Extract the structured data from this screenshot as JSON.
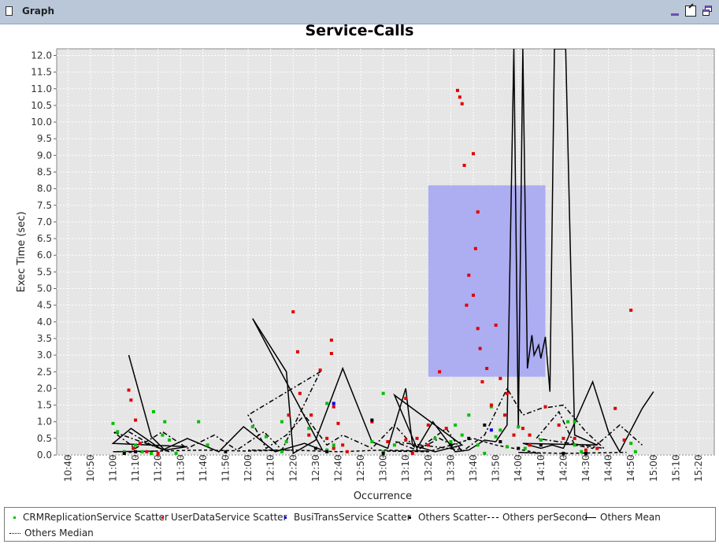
{
  "window": {
    "title": "Graph"
  },
  "chart_data": {
    "type": "scatter",
    "title": "Service-Calls",
    "xlabel": "Occurrence",
    "ylabel": "Exec Time (sec)",
    "ylim": [
      0,
      12.2
    ],
    "yticks": [
      "0.0",
      "0.5",
      "1.0",
      "1.5",
      "2.0",
      "2.5",
      "3.0",
      "3.5",
      "4.0",
      "4.5",
      "5.0",
      "5.5",
      "6.0",
      "6.5",
      "7.0",
      "7.5",
      "8.0",
      "8.5",
      "9.0",
      "9.5",
      "10.0",
      "10.5",
      "11.0",
      "11.5",
      "12.0"
    ],
    "xticks": [
      "10:40",
      "10:50",
      "11:00",
      "11:10",
      "11:20",
      "11:30",
      "11:40",
      "11:50",
      "12:00",
      "12:10",
      "12:20",
      "12:30",
      "12:40",
      "12:50",
      "13:00",
      "13:10",
      "13:20",
      "13:30",
      "13:40",
      "13:50",
      "14:00",
      "14:10",
      "14:20",
      "14:30",
      "14:40",
      "14:50",
      "15:00",
      "15:10",
      "15:20"
    ],
    "xlim_minutes": [
      635,
      927
    ],
    "grid": true,
    "legend_position": "bottom",
    "selection_box": {
      "x": [
        12.8,
        14.12
      ],
      "y": [
        2.35,
        8.1
      ],
      "color": "#aaaaf2"
    },
    "series": [
      {
        "name": "CRMReplicationService Scatter",
        "kind": "scatter",
        "color": "#00c000",
        "points": [
          [
            10.7,
            0.3
          ],
          [
            10.73,
            0.1
          ],
          [
            10.77,
            0.05
          ],
          [
            10.83,
            1.0
          ],
          [
            10.85,
            0.45
          ],
          [
            10.88,
            0.05
          ],
          [
            11.0,
            0.95
          ],
          [
            11.02,
            0.7
          ],
          [
            11.05,
            0.1
          ],
          [
            11.18,
            1.3
          ],
          [
            11.22,
            0.6
          ],
          [
            11.38,
            1.0
          ],
          [
            11.42,
            0.3
          ],
          [
            11.68,
            0.55
          ],
          [
            11.75,
            0.1
          ],
          [
            11.95,
            1.55
          ],
          [
            11.98,
            0.3
          ],
          [
            12.02,
            0.85
          ],
          [
            12.15,
            1.0
          ],
          [
            12.17,
            0.4
          ],
          [
            12.27,
            0.8
          ],
          [
            12.35,
            0.15
          ],
          [
            12.55,
            0.4
          ],
          [
            12.6,
            0.1
          ],
          [
            12.83,
            0.5
          ],
          [
            13.0,
            1.85
          ],
          [
            13.05,
            0.3
          ],
          [
            13.3,
            0.4
          ],
          [
            13.32,
            0.9
          ],
          [
            13.35,
            0.6
          ],
          [
            13.38,
            1.2
          ],
          [
            13.42,
            0.3
          ],
          [
            13.45,
            0.05
          ],
          [
            13.48,
            1.45
          ],
          [
            13.5,
            0.55
          ],
          [
            13.52,
            0.75
          ],
          [
            13.55,
            0.25
          ],
          [
            13.82,
            1.0
          ],
          [
            13.85,
            0.3
          ],
          [
            14.0,
            0.85
          ],
          [
            14.03,
            0.2
          ],
          [
            14.1,
            0.45
          ],
          [
            14.25,
            1.0
          ],
          [
            14.28,
            0.1
          ],
          [
            14.5,
            0.35
          ],
          [
            14.52,
            0.1
          ]
        ]
      },
      {
        "name": "UserDataService Scatter",
        "kind": "scatter",
        "color": "#e00000",
        "points": [
          [
            10.67,
            1.95
          ],
          [
            10.68,
            1.65
          ],
          [
            10.7,
            1.05
          ],
          [
            10.69,
            0.2
          ],
          [
            10.72,
            0.35
          ],
          [
            10.75,
            0.1
          ],
          [
            10.8,
            0.05
          ],
          [
            11.97,
            3.05
          ],
          [
            11.92,
            2.55
          ],
          [
            11.88,
            1.2
          ],
          [
            11.95,
            0.5
          ],
          [
            11.98,
            0.2
          ],
          [
            12.2,
            4.3
          ],
          [
            12.22,
            3.1
          ],
          [
            12.23,
            1.85
          ],
          [
            12.18,
            1.2
          ],
          [
            12.27,
            0.6
          ],
          [
            12.37,
            3.45
          ],
          [
            12.38,
            1.45
          ],
          [
            12.4,
            0.95
          ],
          [
            12.42,
            0.3
          ],
          [
            12.44,
            0.1
          ],
          [
            12.55,
            1.0
          ],
          [
            12.62,
            0.4
          ],
          [
            12.7,
            1.7
          ],
          [
            12.75,
            0.5
          ],
          [
            12.8,
            0.3
          ],
          [
            13.1,
            0.45
          ],
          [
            13.13,
            0.05
          ],
          [
            13.2,
            0.9
          ],
          [
            13.25,
            2.5
          ],
          [
            13.28,
            0.8
          ],
          [
            13.33,
            10.95
          ],
          [
            13.34,
            10.75
          ],
          [
            13.35,
            10.55
          ],
          [
            13.36,
            8.7
          ],
          [
            13.38,
            5.4
          ],
          [
            13.37,
            4.5
          ],
          [
            13.4,
            9.05
          ],
          [
            13.42,
            7.3
          ],
          [
            13.41,
            6.2
          ],
          [
            13.4,
            4.8
          ],
          [
            13.42,
            3.8
          ],
          [
            13.43,
            3.2
          ],
          [
            13.44,
            2.2
          ],
          [
            13.46,
            2.6
          ],
          [
            13.48,
            1.5
          ],
          [
            13.5,
            3.9
          ],
          [
            13.52,
            2.3
          ],
          [
            13.54,
            1.2
          ],
          [
            13.55,
            1.85
          ],
          [
            13.58,
            0.6
          ],
          [
            13.62,
            0.8
          ],
          [
            13.65,
            0.3
          ],
          [
            13.8,
            0.5
          ],
          [
            13.9,
            0.15
          ],
          [
            14.05,
            0.6
          ],
          [
            14.12,
            1.45
          ],
          [
            14.18,
            0.9
          ],
          [
            14.25,
            0.5
          ],
          [
            14.35,
            0.2
          ],
          [
            14.43,
            1.4
          ],
          [
            14.47,
            0.45
          ],
          [
            14.5,
            4.35
          ]
        ]
      },
      {
        "name": "BusiTransService Scatter",
        "kind": "scatter",
        "color": "#0000e0",
        "points": [
          [
            11.98,
            1.55
          ],
          [
            13.48,
            0.75
          ]
        ]
      },
      {
        "name": "Others Scatter",
        "kind": "scatter",
        "color": "#000000",
        "points": [
          [
            10.7,
            0.1
          ],
          [
            11.05,
            0.05
          ],
          [
            11.5,
            0.1
          ],
          [
            11.95,
            0.1
          ],
          [
            12.3,
            0.2
          ],
          [
            12.55,
            1.05
          ],
          [
            13.0,
            0.05
          ],
          [
            13.3,
            0.3
          ],
          [
            13.38,
            0.5
          ],
          [
            13.45,
            0.9
          ],
          [
            13.52,
            0.4
          ],
          [
            13.6,
            0.2
          ],
          [
            13.8,
            0.05
          ],
          [
            14.1,
            0.3
          ],
          [
            14.3,
            0.05
          ]
        ]
      },
      {
        "name": "Others perSecond",
        "kind": "line",
        "dash": "short",
        "color": "#000000",
        "points": [
          [
            10.67,
            0.08
          ],
          [
            10.8,
            0.12
          ],
          [
            11.0,
            0.1
          ],
          [
            11.2,
            0.12
          ],
          [
            11.4,
            0.15
          ],
          [
            11.6,
            0.12
          ],
          [
            11.8,
            0.15
          ],
          [
            12.0,
            0.15
          ],
          [
            12.2,
            0.15
          ],
          [
            12.4,
            0.1
          ],
          [
            12.6,
            0.15
          ],
          [
            12.8,
            0.12
          ],
          [
            13.0,
            0.12
          ],
          [
            13.2,
            0.1
          ],
          [
            13.3,
            0.3
          ],
          [
            13.4,
            0.5
          ],
          [
            13.5,
            0.3
          ],
          [
            13.7,
            0.05
          ],
          [
            14.0,
            0.08
          ],
          [
            14.2,
            0.05
          ],
          [
            14.48,
            0.08
          ]
        ]
      },
      {
        "name": "Others Mean",
        "kind": "line",
        "dash": "solid",
        "color": "#000000",
        "points": [
          [
            10.67,
            3.0
          ],
          [
            10.77,
            0.55
          ],
          [
            10.83,
            0.15
          ],
          [
            10.93,
            0.25
          ],
          [
            11.0,
            0.35
          ],
          [
            11.08,
            0.8
          ],
          [
            11.22,
            0.15
          ],
          [
            11.33,
            0.5
          ],
          [
            11.47,
            0.1
          ],
          [
            11.58,
            0.85
          ],
          [
            11.72,
            0.1
          ],
          [
            11.85,
            0.35
          ],
          [
            11.93,
            0.15
          ],
          [
            12.02,
            4.1
          ],
          [
            12.17,
            2.5
          ],
          [
            12.2,
            0.05
          ],
          [
            12.3,
            0.45
          ],
          [
            12.42,
            2.6
          ],
          [
            12.55,
            0.4
          ],
          [
            12.62,
            0.2
          ],
          [
            12.7,
            2.0
          ],
          [
            12.73,
            0.3
          ],
          [
            12.83,
            0.1
          ],
          [
            12.95,
            0.3
          ],
          [
            13.05,
            1.8
          ],
          [
            13.15,
            0.2
          ],
          [
            13.22,
            1.0
          ],
          [
            13.32,
            0.1
          ],
          [
            13.38,
            0.15
          ],
          [
            13.45,
            0.45
          ],
          [
            13.5,
            0.4
          ],
          [
            13.55,
            0.9
          ],
          [
            13.58,
            12.2
          ],
          [
            13.6,
            0.8
          ],
          [
            13.62,
            12.2
          ],
          [
            13.64,
            2.6
          ],
          [
            13.66,
            3.6
          ],
          [
            13.67,
            3.0
          ],
          [
            13.69,
            3.3
          ],
          [
            13.7,
            2.9
          ],
          [
            13.72,
            3.55
          ],
          [
            13.74,
            1.9
          ],
          [
            13.76,
            12.2
          ],
          [
            13.81,
            12.2
          ],
          [
            13.85,
            0.6
          ],
          [
            13.95,
            0.3
          ],
          [
            14.02,
            0.35
          ],
          [
            14.1,
            0.2
          ],
          [
            14.15,
            0.3
          ],
          [
            14.2,
            0.2
          ],
          [
            14.33,
            2.2
          ],
          [
            14.4,
            0.7
          ],
          [
            14.45,
            0.1
          ],
          [
            14.55,
            1.4
          ],
          [
            14.6,
            1.9
          ]
        ]
      },
      {
        "name": "Others Median",
        "kind": "line",
        "dash": "dashdot",
        "color": "#000000",
        "points": [
          [
            10.67,
            0.7
          ],
          [
            10.77,
            0.3
          ],
          [
            10.85,
            0.1
          ],
          [
            11.0,
            0.7
          ],
          [
            11.1,
            0.2
          ],
          [
            11.22,
            0.7
          ],
          [
            11.33,
            0.2
          ],
          [
            11.45,
            0.6
          ],
          [
            11.55,
            0.15
          ],
          [
            11.67,
            0.7
          ],
          [
            11.75,
            0.15
          ],
          [
            11.92,
            2.5
          ],
          [
            12.0,
            1.2
          ],
          [
            12.08,
            0.2
          ],
          [
            12.17,
            0.6
          ],
          [
            12.25,
            1.2
          ],
          [
            12.35,
            0.3
          ],
          [
            12.42,
            0.6
          ],
          [
            12.55,
            0.2
          ],
          [
            12.65,
            0.9
          ],
          [
            12.75,
            0.15
          ],
          [
            12.85,
            0.5
          ],
          [
            12.95,
            0.15
          ],
          [
            13.05,
            0.4
          ],
          [
            13.15,
            0.15
          ],
          [
            13.28,
            0.8
          ],
          [
            13.35,
            0.1
          ],
          [
            13.45,
            0.6
          ],
          [
            13.55,
            2.0
          ],
          [
            13.62,
            1.2
          ],
          [
            13.7,
            1.4
          ],
          [
            13.8,
            1.5
          ],
          [
            13.9,
            0.7
          ],
          [
            13.98,
            0.2
          ],
          [
            14.08,
            0.5
          ],
          [
            14.18,
            1.3
          ],
          [
            14.25,
            0.3
          ],
          [
            14.33,
            0.2
          ],
          [
            14.45,
            0.9
          ],
          [
            14.55,
            0.3
          ]
        ]
      }
    ]
  }
}
